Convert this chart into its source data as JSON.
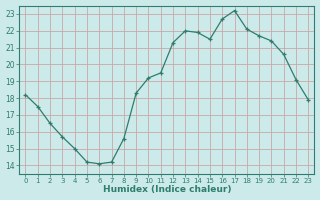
{
  "x": [
    0,
    1,
    2,
    3,
    4,
    5,
    6,
    7,
    8,
    9,
    10,
    11,
    12,
    13,
    14,
    15,
    16,
    17,
    18,
    19,
    20,
    21,
    22,
    23
  ],
  "y": [
    18.2,
    17.5,
    16.5,
    15.7,
    15.0,
    14.2,
    14.1,
    14.2,
    15.6,
    18.3,
    19.2,
    19.5,
    21.3,
    22.0,
    21.9,
    21.5,
    22.7,
    23.2,
    22.1,
    21.7,
    21.4,
    20.6,
    19.1,
    17.9
  ],
  "line_color": "#2e7d6e",
  "marker": "+",
  "background_color": "#cceaea",
  "xlabel": "Humidex (Indice chaleur)",
  "xlim": [
    -0.5,
    23.5
  ],
  "ylim": [
    13.5,
    23.5
  ],
  "yticks": [
    14,
    15,
    16,
    17,
    18,
    19,
    20,
    21,
    22,
    23
  ],
  "xticks": [
    0,
    1,
    2,
    3,
    4,
    5,
    6,
    7,
    8,
    9,
    10,
    11,
    12,
    13,
    14,
    15,
    16,
    17,
    18,
    19,
    20,
    21,
    22,
    23
  ],
  "axis_color": "#2e7d6e",
  "tick_color": "#2e7d6e",
  "label_color": "#2e7d6e",
  "grid_h_color": "#c8a8a8",
  "grid_v_color": "#c8a8a8"
}
